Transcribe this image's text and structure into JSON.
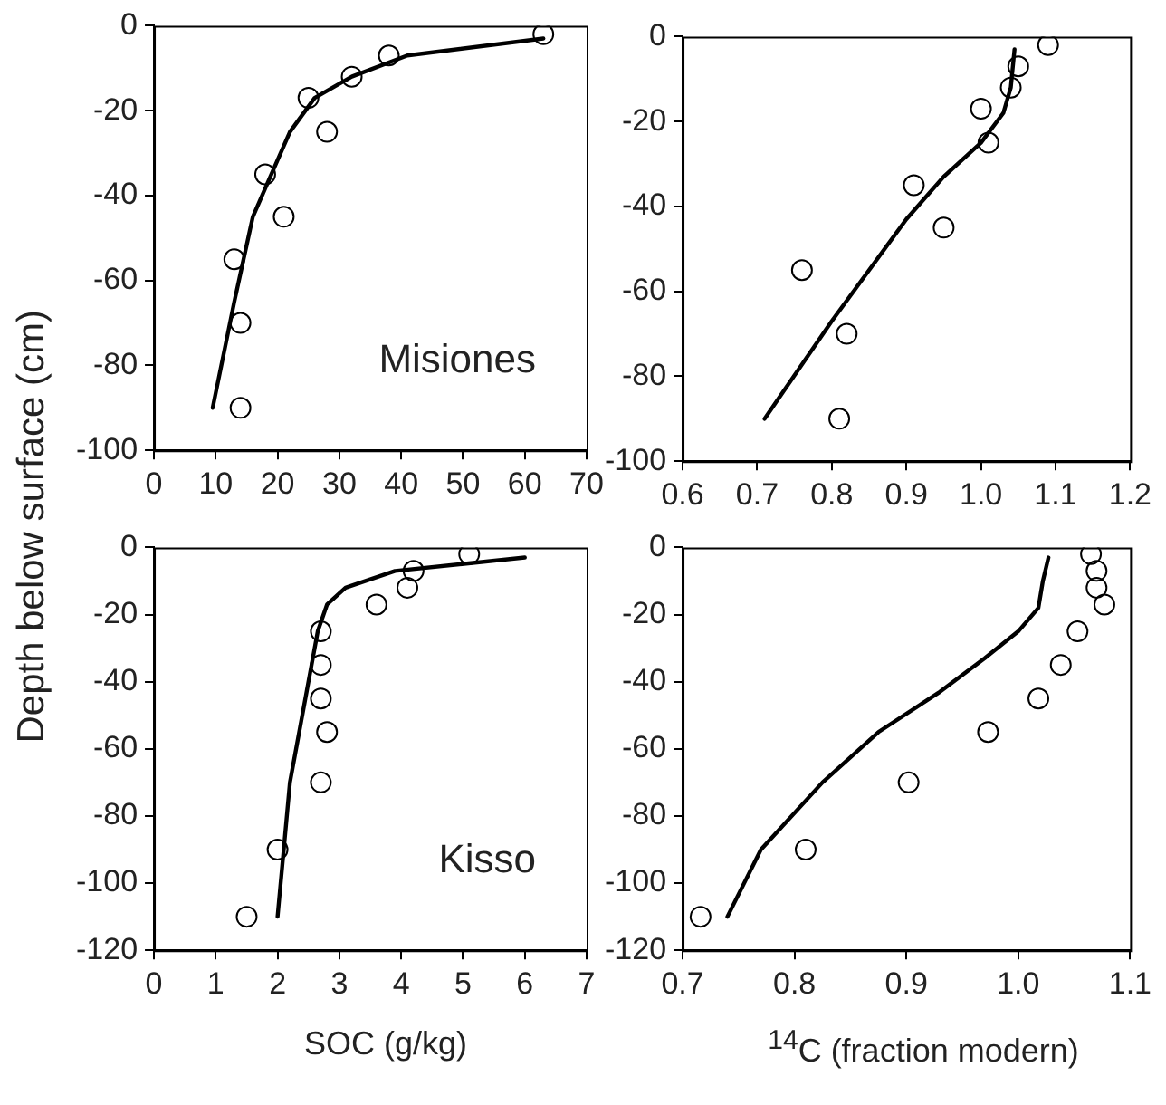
{
  "chart_data": [
    {
      "type": "scatter",
      "ylabel": "Depth below surface (cm)",
      "annotations": [
        "Misiones"
      ],
      "xlim": [
        0,
        70
      ],
      "xticks": [
        0,
        10,
        20,
        30,
        40,
        50,
        60,
        70
      ],
      "ylim": [
        -100,
        0
      ],
      "yticks": [
        -100,
        -80,
        -60,
        -40,
        -20,
        0
      ],
      "grid": false,
      "legend": false,
      "series": [
        {
          "color": "#000000",
          "marker": "circle",
          "x": [
            63,
            38,
            32,
            25,
            28,
            18,
            21,
            13,
            14,
            14
          ],
          "values": [
            -2,
            -7,
            -12,
            -17,
            -25,
            -35,
            -45,
            -55,
            -70,
            -90
          ]
        },
        {
          "type": "line",
          "color": "#000000",
          "marker": "none",
          "line_style": "solid",
          "x": [
            9.5,
            13,
            16,
            19,
            22,
            26,
            32,
            41,
            63
          ],
          "values": [
            -90,
            -65,
            -45,
            -35,
            -25,
            -17,
            -12,
            -7,
            -3
          ]
        }
      ]
    },
    {
      "type": "scatter",
      "xlim": [
        0.6,
        1.2
      ],
      "xticks": [
        0.6,
        0.7,
        0.8,
        0.9,
        {
          "value": 1,
          "label": "1.0"
        },
        1.1,
        1.2
      ],
      "ylim": [
        -100,
        0
      ],
      "yticks": [
        -100,
        -80,
        -60,
        -40,
        -20,
        0
      ],
      "grid": false,
      "legend": false,
      "series": [
        {
          "color": "#000000",
          "marker": "circle",
          "x": [
            1.09,
            1.05,
            1.04,
            1.0,
            1.01,
            0.91,
            0.95,
            0.76,
            0.82,
            0.81
          ],
          "values": [
            -2,
            -7,
            -12,
            -17,
            -25,
            -35,
            -45,
            -55,
            -70,
            -90
          ]
        },
        {
          "type": "line",
          "color": "#000000",
          "marker": "none",
          "line_style": "solid",
          "x": [
            0.71,
            0.8,
            0.9,
            0.95,
            1.0,
            1.03,
            1.04,
            1.045
          ],
          "values": [
            -90,
            -67,
            -43,
            -33,
            -25,
            -18,
            -12,
            -3
          ]
        }
      ]
    },
    {
      "type": "scatter",
      "xlabel": "SOC (g/kg)",
      "annotations": [
        "Kisso"
      ],
      "xlim": [
        0,
        7
      ],
      "xticks": [
        0,
        1,
        2,
        3,
        4,
        5,
        6,
        7
      ],
      "ylim": [
        -120,
        0
      ],
      "yticks": [
        -120,
        -100,
        -80,
        -60,
        -40,
        -20,
        0
      ],
      "grid": false,
      "legend": false,
      "series": [
        {
          "color": "#000000",
          "marker": "circle",
          "x": [
            5.1,
            4.2,
            4.1,
            3.6,
            2.7,
            2.7,
            2.7,
            2.8,
            2.7,
            2.0,
            1.5
          ],
          "values": [
            -2,
            -7,
            -12,
            -17,
            -25,
            -35,
            -45,
            -55,
            -70,
            -90,
            -110
          ]
        },
        {
          "type": "line",
          "color": "#000000",
          "marker": "none",
          "line_style": "solid",
          "x": [
            2.0,
            2.2,
            2.5,
            2.65,
            2.8,
            3.1,
            3.9,
            6.0
          ],
          "values": [
            -110,
            -70,
            -40,
            -25,
            -17,
            -12,
            -7,
            -3
          ]
        }
      ]
    },
    {
      "type": "scatter",
      "xlabel": "$^{14}$C (fraction modern)",
      "xlim": [
        0.7,
        1.1
      ],
      "xticks": [
        0.7,
        0.8,
        0.9,
        {
          "value": 1,
          "label": "1.0"
        },
        1.1
      ],
      "ylim": [
        -120,
        0
      ],
      "yticks": [
        -120,
        -100,
        -80,
        -60,
        -40,
        -20,
        0
      ],
      "grid": false,
      "legend": false,
      "series": [
        {
          "color": "#000000",
          "marker": "circle",
          "x": [
            1.065,
            1.07,
            1.07,
            1.077,
            1.053,
            1.038,
            1.018,
            0.973,
            0.902,
            0.81,
            0.716
          ],
          "values": [
            -2,
            -7,
            -12,
            -17,
            -25,
            -35,
            -45,
            -55,
            -70,
            -90,
            -110
          ]
        },
        {
          "type": "line",
          "color": "#000000",
          "marker": "none",
          "line_style": "solid",
          "x": [
            0.74,
            0.77,
            0.825,
            0.875,
            0.93,
            0.97,
            1.0,
            1.018,
            1.022,
            1.027
          ],
          "values": [
            -110,
            -90,
            -70,
            -55,
            -43,
            -33,
            -25,
            -18,
            -10,
            -3
          ]
        }
      ]
    }
  ]
}
